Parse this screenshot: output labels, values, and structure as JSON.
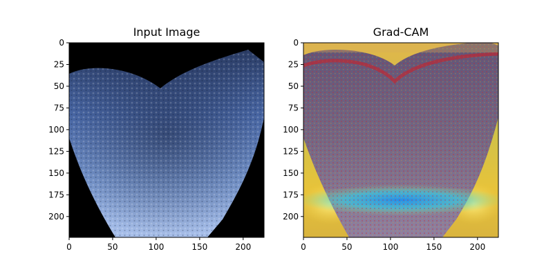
{
  "figure": {
    "panels": [
      {
        "title": "Input Image"
      },
      {
        "title": "Grad-CAM"
      }
    ]
  },
  "chart_data": [
    {
      "type": "image",
      "title": "Input Image",
      "xlim": [
        0,
        224
      ],
      "ylim": [
        224,
        0
      ],
      "xticks": [
        0,
        50,
        100,
        150,
        200
      ],
      "yticks": [
        0,
        25,
        50,
        75,
        100,
        125,
        150,
        175,
        200
      ],
      "colormap": "bone",
      "grid": false
    },
    {
      "type": "image",
      "title": "Grad-CAM",
      "xlim": [
        0,
        224
      ],
      "ylim": [
        224,
        0
      ],
      "xticks": [
        0,
        50,
        100,
        150,
        200
      ],
      "yticks": [
        0,
        25,
        50,
        75,
        100,
        125,
        150,
        175,
        200
      ],
      "colormap": "jet overlay",
      "grid": false
    }
  ]
}
